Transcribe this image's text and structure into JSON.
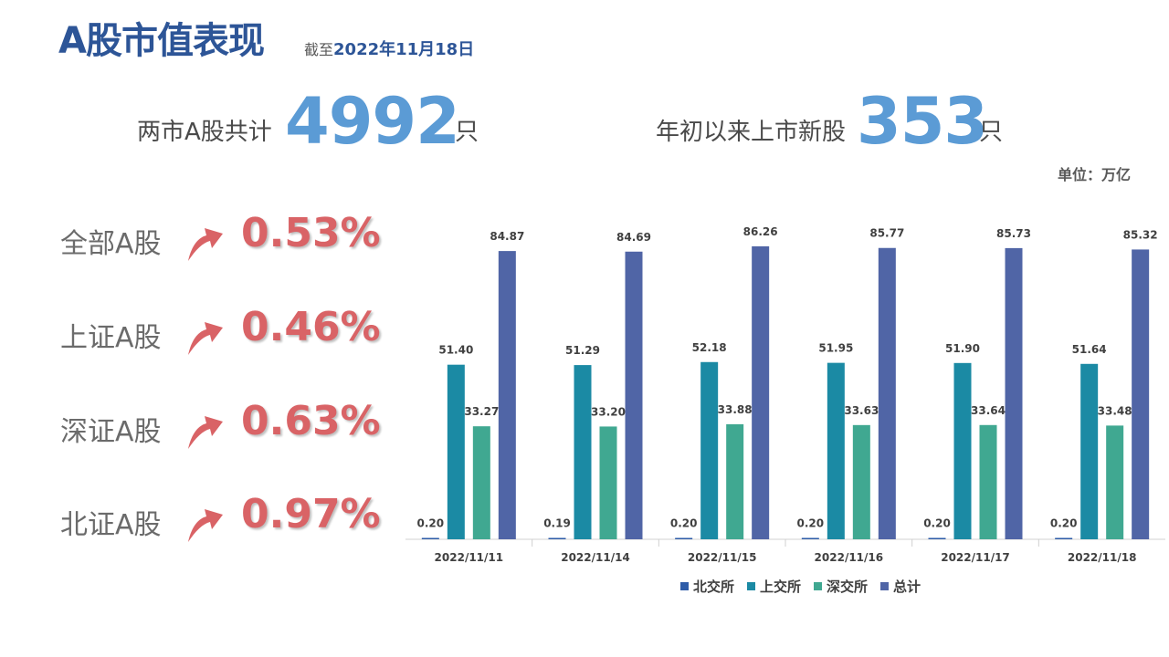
{
  "header": {
    "title": "A股市值表现",
    "subtitle_prefix": "截至",
    "subtitle_date": "2022年11月18日"
  },
  "stats": {
    "total_label": "两市A股共计",
    "total_value": "4992",
    "total_unit": "只",
    "new_label": "年初以来上市新股",
    "new_value": "353",
    "new_unit": "只"
  },
  "unit_text": "单位：万亿",
  "indices": [
    {
      "label": "全部A股",
      "change": "0.53%",
      "direction": "up"
    },
    {
      "label": "上证A股",
      "change": "0.46%",
      "direction": "up"
    },
    {
      "label": "深证A股",
      "change": "0.63%",
      "direction": "up"
    },
    {
      "label": "北证A股",
      "change": "0.97%",
      "direction": "up"
    }
  ],
  "colors": {
    "title": "#2d5597",
    "stat_value": "#5b9bd5",
    "index_change": "#d96366",
    "arrow": "#d96366"
  },
  "chart_data": {
    "type": "bar",
    "categories": [
      "2022/11/11",
      "2022/11/14",
      "2022/11/15",
      "2022/11/16",
      "2022/11/17",
      "2022/11/18"
    ],
    "series": [
      {
        "name": "北交所",
        "color": "#2e5ca8",
        "values": [
          0.2,
          0.19,
          0.2,
          0.2,
          0.2,
          0.2
        ]
      },
      {
        "name": "上交所",
        "color": "#1b8aa4",
        "values": [
          51.4,
          51.29,
          52.18,
          51.95,
          51.9,
          51.64
        ]
      },
      {
        "name": "深交所",
        "color": "#40a891",
        "values": [
          33.27,
          33.2,
          33.88,
          33.63,
          33.64,
          33.48
        ]
      },
      {
        "name": "总计",
        "color": "#5065a6",
        "values": [
          84.87,
          84.69,
          86.26,
          85.77,
          85.73,
          85.32
        ]
      }
    ],
    "ylim": [
      0,
      90
    ],
    "legend_position": "bottom",
    "grid": false
  }
}
